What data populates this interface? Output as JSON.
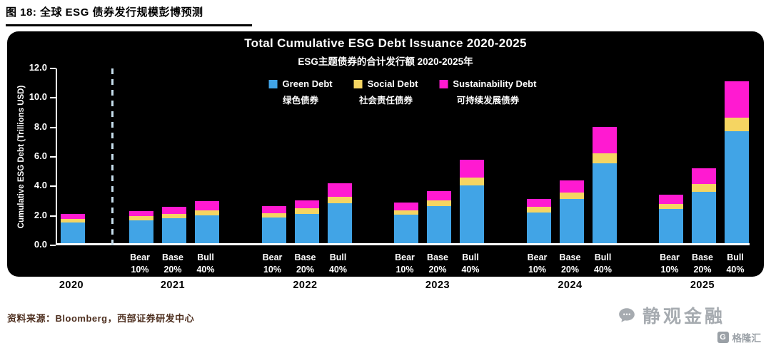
{
  "page": {
    "figure_title": "图 18: 全球 ESG 债券发行规模彭博预测",
    "source": "资料来源：Bloomberg，西部证券研发中心",
    "watermark_main": "静观金融",
    "watermark_sub": "格隆汇",
    "watermark_sub_icon_letter": "G"
  },
  "chart_data": {
    "type": "bar",
    "stacked": true,
    "title": "Total Cumulative ESG Debt Issuance 2020-2025",
    "subtitle": "ESG主题债券的合计发行额 2020-2025年",
    "ylabel": "Cumulative ESG Debt (Trillions USD)",
    "ylim": [
      0,
      12
    ],
    "ytick_step": 2,
    "background": "#000000",
    "legend_position": "top-center",
    "grid": false,
    "forecast_divider_after": "2020",
    "legend": [
      {
        "name": "Green Debt",
        "name_cn": "绿色债券",
        "color": "#41a4e6"
      },
      {
        "name": "Social Debt",
        "name_cn": "社会责任债券",
        "color": "#f5d562"
      },
      {
        "name": "Sustainability Debt",
        "name_cn": "可持续发展债券",
        "color": "#ff1ad1"
      }
    ],
    "series_order": [
      "Green Debt",
      "Social Debt",
      "Sustainability Debt"
    ],
    "scenario_labels": [
      "Bear 10%",
      "Base 20%",
      "Bull 40%"
    ],
    "groups": [
      {
        "year": "2020",
        "bars": [
          {
            "label": "",
            "values": [
              1.4,
              0.25,
              0.35
            ]
          }
        ]
      },
      {
        "year": "2021",
        "bars": [
          {
            "label": "Bear 10%",
            "values": [
              1.55,
              0.28,
              0.37
            ]
          },
          {
            "label": "Base 20%",
            "values": [
              1.7,
              0.3,
              0.45
            ]
          },
          {
            "label": "Bull 40%",
            "values": [
              1.9,
              0.35,
              0.6
            ]
          }
        ]
      },
      {
        "year": "2022",
        "bars": [
          {
            "label": "Bear 10%",
            "values": [
              1.75,
              0.3,
              0.45
            ]
          },
          {
            "label": "Base 20%",
            "values": [
              2.0,
              0.35,
              0.55
            ]
          },
          {
            "label": "Bull 40%",
            "values": [
              2.7,
              0.45,
              0.9
            ]
          }
        ]
      },
      {
        "year": "2023",
        "bars": [
          {
            "label": "Bear 10%",
            "values": [
              1.95,
              0.3,
              0.5
            ]
          },
          {
            "label": "Base 20%",
            "values": [
              2.5,
              0.4,
              0.65
            ]
          },
          {
            "label": "Bull 40%",
            "values": [
              3.9,
              0.55,
              1.2
            ]
          }
        ]
      },
      {
        "year": "2024",
        "bars": [
          {
            "label": "Bear 10%",
            "values": [
              2.1,
              0.35,
              0.55
            ]
          },
          {
            "label": "Base 20%",
            "values": [
              3.0,
              0.45,
              0.8
            ]
          },
          {
            "label": "Bull 40%",
            "values": [
              5.4,
              0.7,
              1.8
            ]
          }
        ]
      },
      {
        "year": "2025",
        "bars": [
          {
            "label": "Bear 10%",
            "values": [
              2.3,
              0.35,
              0.65
            ]
          },
          {
            "label": "Base 20%",
            "values": [
              3.5,
              0.5,
              1.1
            ]
          },
          {
            "label": "Bull 40%",
            "values": [
              7.6,
              0.9,
              2.5
            ]
          }
        ]
      }
    ]
  }
}
